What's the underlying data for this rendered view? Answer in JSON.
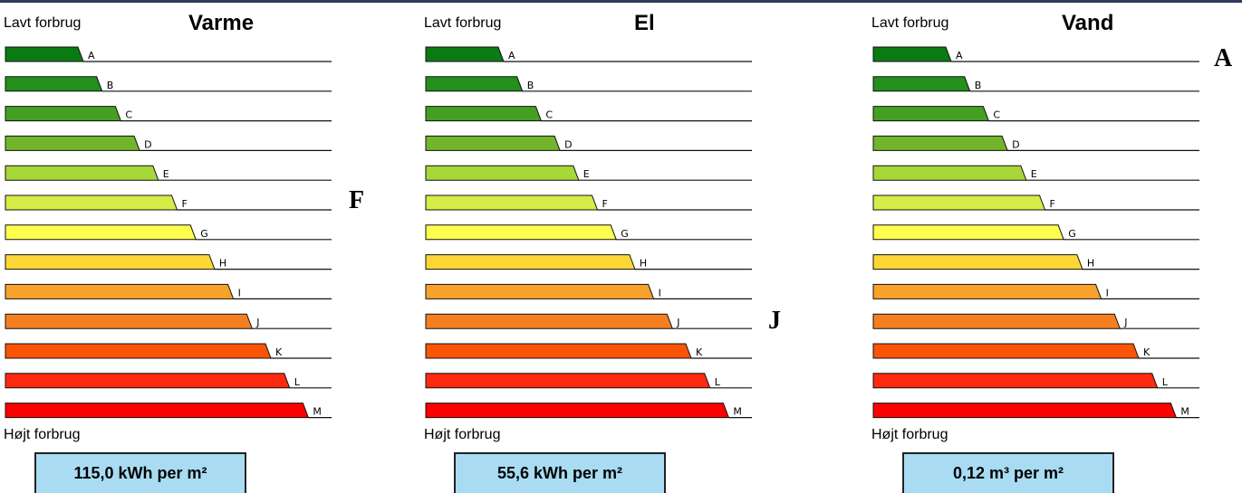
{
  "chart_data": {
    "type": "bar",
    "categories": [
      "A",
      "B",
      "C",
      "D",
      "E",
      "F",
      "G",
      "H",
      "I",
      "J",
      "K",
      "L",
      "M"
    ],
    "colors": [
      "#0a7a12",
      "#22901a",
      "#459f22",
      "#72b52c",
      "#a7d739",
      "#d6ec47",
      "#fdfd4e",
      "#fcd733",
      "#f9a22b",
      "#f57f20",
      "#fb5407",
      "#fe2a0f",
      "#ff0000"
    ],
    "panels": [
      {
        "title": "Varme",
        "top_label": "Lavt forbrug",
        "bottom_label": "Højt forbrug",
        "value_text": "115,0 kWh per m²",
        "value": 115.0,
        "unit": "kWh per m²",
        "rating": "F"
      },
      {
        "title": "El",
        "top_label": "Lavt forbrug",
        "bottom_label": "Højt forbrug",
        "value_text": "55,6 kWh per m²",
        "value": 55.6,
        "unit": "kWh per m²",
        "rating": "J"
      },
      {
        "title": "Vand",
        "top_label": "Lavt forbrug",
        "bottom_label": "Højt forbrug",
        "value_text": "0,12 m³ per m²",
        "value": 0.12,
        "unit": "m³ per m²",
        "rating": "A"
      }
    ]
  }
}
